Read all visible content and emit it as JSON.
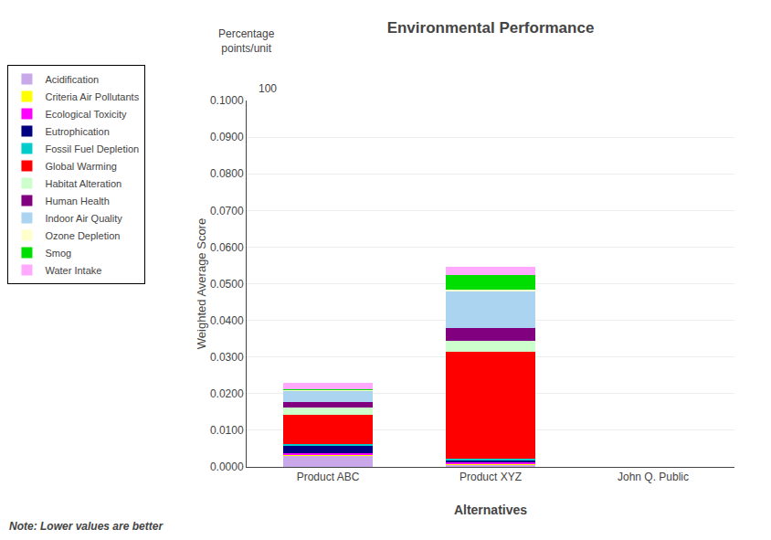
{
  "chart_data": {
    "type": "bar",
    "stacked": true,
    "title": "Environmental Performance",
    "xlabel": "Alternatives",
    "ylabel": "Weighted Average Score",
    "categories": [
      "Product ABC",
      "Product XYZ",
      "John Q. Public"
    ],
    "series": [
      {
        "name": "Acidification",
        "color": "#c8a8e8",
        "values": [
          0.003,
          0.0005,
          0
        ]
      },
      {
        "name": "Criteria Air Pollutants",
        "color": "#ffff00",
        "values": [
          0.0003,
          0.0003,
          0
        ]
      },
      {
        "name": "Ecological Toxicity",
        "color": "#ff00ff",
        "values": [
          0.0005,
          0.0005,
          0
        ]
      },
      {
        "name": "Eutrophication",
        "color": "#000080",
        "values": [
          0.002,
          0.0005,
          0
        ]
      },
      {
        "name": "Fossil Fuel Depletion",
        "color": "#00cccc",
        "values": [
          0.0005,
          0.0005,
          0
        ]
      },
      {
        "name": "Global Warming",
        "color": "#ff0000",
        "values": [
          0.008,
          0.029,
          0
        ]
      },
      {
        "name": "Habitat Alteration",
        "color": "#ccffcc",
        "values": [
          0.002,
          0.003,
          0
        ]
      },
      {
        "name": "Human Health",
        "color": "#800080",
        "values": [
          0.0015,
          0.0035,
          0
        ]
      },
      {
        "name": "Indoor Air Quality",
        "color": "#aad4f0",
        "values": [
          0.003,
          0.01,
          0
        ]
      },
      {
        "name": "Ozone Depletion",
        "color": "#ffffcc",
        "values": [
          0.0002,
          0.0005,
          0
        ]
      },
      {
        "name": "Smog",
        "color": "#00dd00",
        "values": [
          0.0002,
          0.004,
          0
        ]
      },
      {
        "name": "Water Intake",
        "color": "#ffaaff",
        "values": [
          0.0018,
          0.0022,
          0
        ]
      }
    ],
    "ylim": [
      0.0,
      0.1
    ],
    "yticks": [
      {
        "value": 0.0,
        "label": "0.0000"
      },
      {
        "value": 0.01,
        "label": "0.0100"
      },
      {
        "value": 0.02,
        "label": "0.0200"
      },
      {
        "value": 0.03,
        "label": "0.0300"
      },
      {
        "value": 0.04,
        "label": "0.0400"
      },
      {
        "value": 0.05,
        "label": "0.0500"
      },
      {
        "value": 0.06,
        "label": "0.0600"
      },
      {
        "value": 0.07,
        "label": "0.0700"
      },
      {
        "value": 0.08,
        "label": "0.0800"
      },
      {
        "value": 0.09,
        "label": "0.0900"
      },
      {
        "value": 0.1,
        "label": "0.1000"
      }
    ],
    "grid": true,
    "legend": "left",
    "annotations": [
      "Note: Lower values are better",
      "Percentage\npoints/unit",
      "100"
    ]
  }
}
